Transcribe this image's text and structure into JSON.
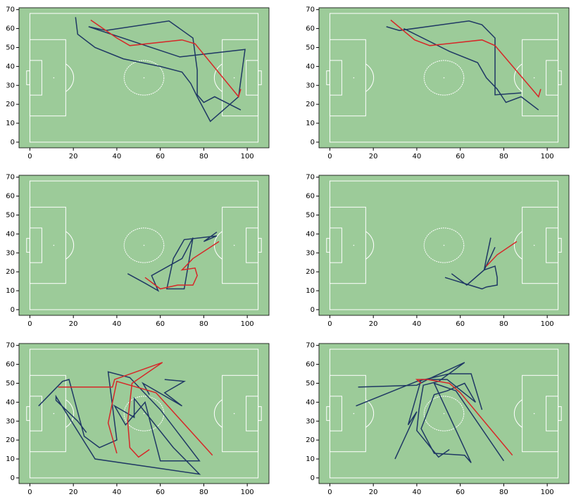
{
  "chart_data": [
    {
      "type": "line",
      "facecolor": "#9ccb99",
      "xlim": [
        -5,
        110
      ],
      "ylim": [
        -3,
        71
      ],
      "xticks": [
        0,
        20,
        40,
        60,
        80,
        100
      ],
      "yticks": [
        0,
        10,
        20,
        30,
        40,
        50,
        60,
        70
      ],
      "series": [
        {
          "color": "#1f3864",
          "x": [
            21,
            22,
            30,
            43,
            60,
            70,
            74,
            77,
            83,
            96,
            99,
            69,
            27,
            35,
            64,
            75,
            77,
            77,
            80,
            85,
            97
          ],
          "values": [
            66,
            57,
            50,
            44,
            40,
            37,
            31,
            24,
            11,
            24,
            49,
            45,
            61,
            59,
            64,
            55,
            38,
            25,
            21,
            24,
            17
          ]
        },
        {
          "color": "#d62728",
          "x": [
            28,
            40,
            46,
            70,
            76,
            96,
            97
          ],
          "values": [
            64.5,
            55,
            51,
            54,
            52,
            24,
            28
          ]
        }
      ]
    },
    {
      "type": "line",
      "facecolor": "#9ccb99",
      "xlim": [
        -5,
        110
      ],
      "ylim": [
        -3,
        71
      ],
      "xticks": [
        0,
        20,
        40,
        60,
        80,
        100
      ],
      "yticks": [
        0,
        10,
        20,
        30,
        40,
        50,
        60,
        70
      ],
      "series": [
        {
          "color": "#1f3864",
          "x": [
            26,
            32,
            64,
            70,
            76,
            76,
            88
          ],
          "values": [
            61,
            59,
            64,
            62,
            55,
            25,
            26
          ]
        },
        {
          "color": "#1f3864",
          "x": [
            34,
            55,
            68,
            72,
            77,
            81,
            88,
            96
          ],
          "values": [
            60,
            48,
            42,
            34,
            28,
            21,
            24,
            17
          ]
        },
        {
          "color": "#d62728",
          "x": [
            28,
            39,
            46,
            70,
            76,
            96,
            97
          ],
          "values": [
            64.5,
            54,
            51,
            54,
            51,
            24,
            28
          ]
        }
      ]
    },
    {
      "type": "line",
      "facecolor": "#9ccb99",
      "xlim": [
        -5,
        110
      ],
      "ylim": [
        -3,
        71
      ],
      "xticks": [
        0,
        20,
        40,
        60,
        80,
        100
      ],
      "yticks": [
        0,
        10,
        20,
        30,
        40,
        50,
        60,
        70
      ],
      "series": [
        {
          "color": "#1f3864",
          "x": [
            45,
            53,
            59,
            56,
            70,
            75,
            71,
            63,
            66,
            71,
            86,
            80,
            86
          ],
          "values": [
            19,
            14,
            10,
            18,
            27,
            38,
            11,
            11,
            27,
            37,
            39,
            36,
            41
          ]
        },
        {
          "color": "#d62728",
          "x": [
            87,
            75,
            70,
            76,
            77,
            75,
            68,
            60,
            53
          ],
          "values": [
            36,
            27,
            21,
            22,
            18,
            13,
            13,
            11,
            17
          ]
        }
      ]
    },
    {
      "type": "line",
      "facecolor": "#9ccb99",
      "xlim": [
        -5,
        110
      ],
      "ylim": [
        -3,
        71
      ],
      "xticks": [
        0,
        20,
        40,
        60,
        80,
        100
      ],
      "yticks": [
        0,
        10,
        20,
        30,
        40,
        50,
        60,
        70
      ],
      "series": [
        {
          "color": "#1f3864",
          "x": [
            53,
            70,
            72,
            77,
            77,
            76,
            71,
            72,
            74
          ],
          "values": [
            17,
            11,
            12,
            13,
            17,
            23,
            21,
            27,
            38
          ]
        },
        {
          "color": "#1f3864",
          "x": [
            56,
            63,
            71,
            74,
            76
          ],
          "values": [
            19,
            13,
            21,
            28,
            33
          ]
        },
        {
          "color": "#d62728",
          "x": [
            86,
            77,
            72
          ],
          "values": [
            36,
            29,
            23
          ]
        }
      ]
    },
    {
      "type": "line",
      "facecolor": "#9ccb99",
      "xlim": [
        -5,
        110
      ],
      "ylim": [
        -3,
        71
      ],
      "xticks": [
        0,
        20,
        40,
        60,
        80,
        100
      ],
      "yticks": [
        0,
        10,
        20,
        30,
        40,
        50,
        60,
        70
      ],
      "series": [
        {
          "color": "#1f3864",
          "x": [
            4,
            15,
            18,
            25,
            32,
            40,
            36,
            46,
            60,
            78,
            60,
            53,
            44,
            39,
            48,
            48,
            66,
            78,
            30,
            12,
            12,
            22,
            26
          ],
          "values": [
            38,
            51,
            52,
            22,
            16,
            20,
            56,
            53,
            36,
            9,
            9,
            40,
            28,
            38,
            32,
            42,
            16,
            2,
            10,
            43,
            41,
            30,
            24
          ]
        },
        {
          "color": "#1f3864",
          "x": [
            62,
            71,
            62,
            70,
            52,
            55
          ],
          "values": [
            52,
            51,
            45,
            38,
            50,
            44
          ]
        },
        {
          "color": "#d62728",
          "x": [
            13,
            38,
            39,
            61,
            47,
            45,
            46,
            50,
            55
          ],
          "values": [
            48,
            48,
            52,
            61,
            50,
            30,
            16,
            11,
            15
          ]
        },
        {
          "color": "#d62728",
          "x": [
            84,
            58,
            40,
            36,
            40
          ],
          "values": [
            12,
            45,
            51,
            29,
            13
          ]
        }
      ]
    },
    {
      "type": "line",
      "facecolor": "#9ccb99",
      "xlim": [
        -5,
        110
      ],
      "ylim": [
        -3,
        71
      ],
      "xticks": [
        0,
        20,
        40,
        60,
        80,
        100
      ],
      "yticks": [
        0,
        10,
        20,
        30,
        40,
        50,
        60,
        70
      ],
      "series": [
        {
          "color": "#1f3864",
          "x": [
            13,
            40,
            45,
            62,
            50,
            43,
            41,
            40,
            50,
            55
          ],
          "values": [
            48,
            49,
            52,
            61,
            51,
            49,
            36,
            25,
            11,
            15
          ]
        },
        {
          "color": "#1f3864",
          "x": [
            12,
            40,
            55,
            65,
            70
          ],
          "values": [
            38,
            51,
            55,
            55,
            36
          ]
        },
        {
          "color": "#1f3864",
          "x": [
            30,
            40,
            36,
            42,
            54,
            67,
            62,
            54,
            48,
            42,
            48,
            62,
            65,
            48,
            58,
            80
          ],
          "values": [
            10,
            35,
            28,
            52,
            52,
            40,
            50,
            46,
            44,
            26,
            13,
            12,
            8,
            50,
            46,
            9
          ]
        },
        {
          "color": "#d62728",
          "x": [
            84,
            60,
            55,
            45,
            40,
            42
          ],
          "values": [
            12,
            45,
            50,
            52,
            52,
            50
          ]
        }
      ]
    }
  ]
}
